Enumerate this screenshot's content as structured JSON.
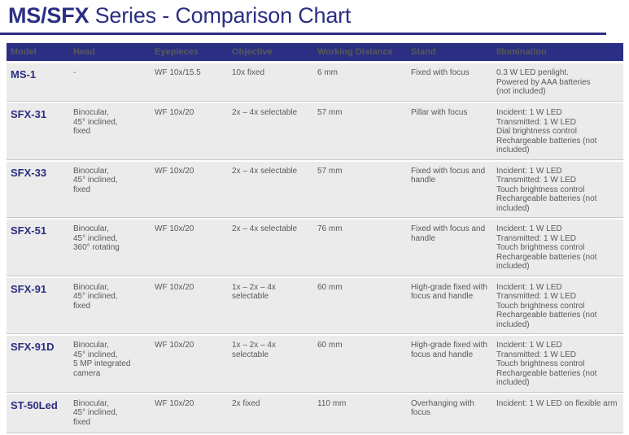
{
  "title": {
    "series": "MS/SFX",
    "rest": " Series - Comparison Chart"
  },
  "colors": {
    "navy": "#2b2e83",
    "row_bg": "#ebebeb",
    "body_text": "#58595b",
    "header_text": "#ffffff",
    "separator": "#c8c8c8"
  },
  "table": {
    "columns": [
      "Model",
      "Head",
      "Eyepieces",
      "Objective",
      "Working Distance",
      "Stand",
      "Illumination"
    ],
    "rows": [
      {
        "model": "MS-1",
        "head": "-",
        "eyepieces": "WF 10x/15.5",
        "objective": "10x fixed",
        "working_distance": "6 mm",
        "stand": "Fixed with focus",
        "illumination": "0.3 W LED penlight.\nPowered by AAA batteries\n(not included)"
      },
      {
        "model": "SFX-31",
        "head": "Binocular,\n45° inclined,\nfixed",
        "eyepieces": "WF 10x/20",
        "objective": "2x – 4x selectable",
        "working_distance": "57 mm",
        "stand": "Pillar with focus",
        "illumination": "Incident: 1 W LED\nTransmitted: 1 W LED\nDial brightness control\nRechargeable batteries (not included)"
      },
      {
        "model": "SFX-33",
        "head": "Binocular,\n45° inclined,\nfixed",
        "eyepieces": "WF 10x/20",
        "objective": "2x – 4x selectable",
        "working_distance": "57 mm",
        "stand": "Fixed with focus and\nhandle",
        "illumination": "Incident: 1 W LED\nTransmitted: 1 W LED\nTouch brightness control\nRechargeable batteries (not included)"
      },
      {
        "model": "SFX-51",
        "head": "Binocular,\n45° inclined,\n360° rotating",
        "eyepieces": "WF 10x/20",
        "objective": "2x – 4x selectable",
        "working_distance": "76 mm",
        "stand": "Fixed with focus and\nhandle",
        "illumination": "Incident: 1 W LED\nTransmitted: 1 W LED\nTouch brightness control\nRechargeable batteries (not included)"
      },
      {
        "model": "SFX-91",
        "head": "Binocular,\n45° inclined,\nfixed",
        "eyepieces": "WF 10x/20",
        "objective": "1x – 2x – 4x\nselectable",
        "working_distance": "60 mm",
        "stand": "High-grade fixed with\nfocus and handle",
        "illumination": "Incident: 1 W LED\nTransmitted: 1 W LED\nTouch brightness control\nRechargeable batteries (not included)"
      },
      {
        "model": "SFX-91D",
        "head": "Binocular,\n45° inclined,\n5 MP integrated\ncamera",
        "eyepieces": "WF 10x/20",
        "objective": "1x – 2x – 4x\nselectable",
        "working_distance": "60 mm",
        "stand": "High-grade fixed with\nfocus and handle",
        "illumination": "Incident: 1 W LED\nTransmitted: 1 W LED\nTouch brightness control\nRechargeable batteries (not included)"
      },
      {
        "model": "ST-50Led",
        "head": "Binocular,\n45° inclined,\nfixed",
        "eyepieces": "WF 10x/20",
        "objective": "2x fixed",
        "working_distance": "110 mm",
        "stand": "Overhanging with\nfocus",
        "illumination": "Incident: 1 W LED on flexible arm"
      }
    ]
  }
}
